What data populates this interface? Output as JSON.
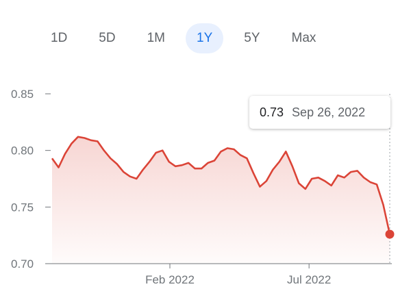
{
  "range_tabs": [
    {
      "label": "1D",
      "active": false
    },
    {
      "label": "5D",
      "active": false
    },
    {
      "label": "1M",
      "active": false
    },
    {
      "label": "1Y",
      "active": true
    },
    {
      "label": "5Y",
      "active": false
    },
    {
      "label": "Max",
      "active": false
    }
  ],
  "tooltip": {
    "value": "0.73",
    "date": "Sep 26, 2022"
  },
  "colors": {
    "line": "#db4437",
    "active_tab_bg": "#e8f0fe",
    "active_tab_text": "#1a73e8",
    "muted_text": "#5f6368",
    "axis": "#70757a"
  },
  "chart_data": {
    "type": "area",
    "title": "",
    "xlabel": "",
    "ylabel": "",
    "ylim": [
      0.7,
      0.85
    ],
    "y_ticks": [
      0.85,
      0.8,
      0.75,
      0.7
    ],
    "y_tick_labels": [
      "0.85",
      "0.80",
      "0.75",
      "0.70"
    ],
    "x_ticks": [
      "2022-02-01",
      "2022-07-01"
    ],
    "x_tick_labels": [
      "Feb 2022",
      "Jul 2022"
    ],
    "xlim": [
      "2021-09-27",
      "2022-09-26"
    ],
    "grid": false,
    "series": [
      {
        "x": [
          "2021-09-27",
          "2021-10-04",
          "2021-10-11",
          "2021-10-18",
          "2021-10-25",
          "2021-11-01",
          "2021-11-08",
          "2021-11-15",
          "2021-11-22",
          "2021-11-29",
          "2021-12-06",
          "2021-12-13",
          "2021-12-20",
          "2021-12-27",
          "2022-01-03",
          "2022-01-10",
          "2022-01-17",
          "2022-01-24",
          "2022-01-31",
          "2022-02-07",
          "2022-02-14",
          "2022-02-21",
          "2022-02-28",
          "2022-03-07",
          "2022-03-14",
          "2022-03-21",
          "2022-03-28",
          "2022-04-04",
          "2022-04-11",
          "2022-04-18",
          "2022-04-25",
          "2022-05-02",
          "2022-05-09",
          "2022-05-16",
          "2022-05-23",
          "2022-05-30",
          "2022-06-06",
          "2022-06-13",
          "2022-06-20",
          "2022-06-27",
          "2022-07-04",
          "2022-07-11",
          "2022-07-18",
          "2022-07-25",
          "2022-08-01",
          "2022-08-08",
          "2022-08-15",
          "2022-08-22",
          "2022-08-29",
          "2022-09-05",
          "2022-09-12",
          "2022-09-19",
          "2022-09-26"
        ],
        "values": [
          0.793,
          0.785,
          0.797,
          0.806,
          0.812,
          0.811,
          0.809,
          0.808,
          0.8,
          0.793,
          0.788,
          0.781,
          0.777,
          0.775,
          0.783,
          0.79,
          0.798,
          0.8,
          0.79,
          0.786,
          0.787,
          0.789,
          0.784,
          0.784,
          0.789,
          0.791,
          0.799,
          0.802,
          0.801,
          0.796,
          0.793,
          0.78,
          0.768,
          0.773,
          0.783,
          0.79,
          0.799,
          0.786,
          0.771,
          0.766,
          0.775,
          0.776,
          0.773,
          0.769,
          0.778,
          0.776,
          0.781,
          0.782,
          0.776,
          0.772,
          0.77,
          0.752,
          0.726
        ]
      }
    ]
  }
}
